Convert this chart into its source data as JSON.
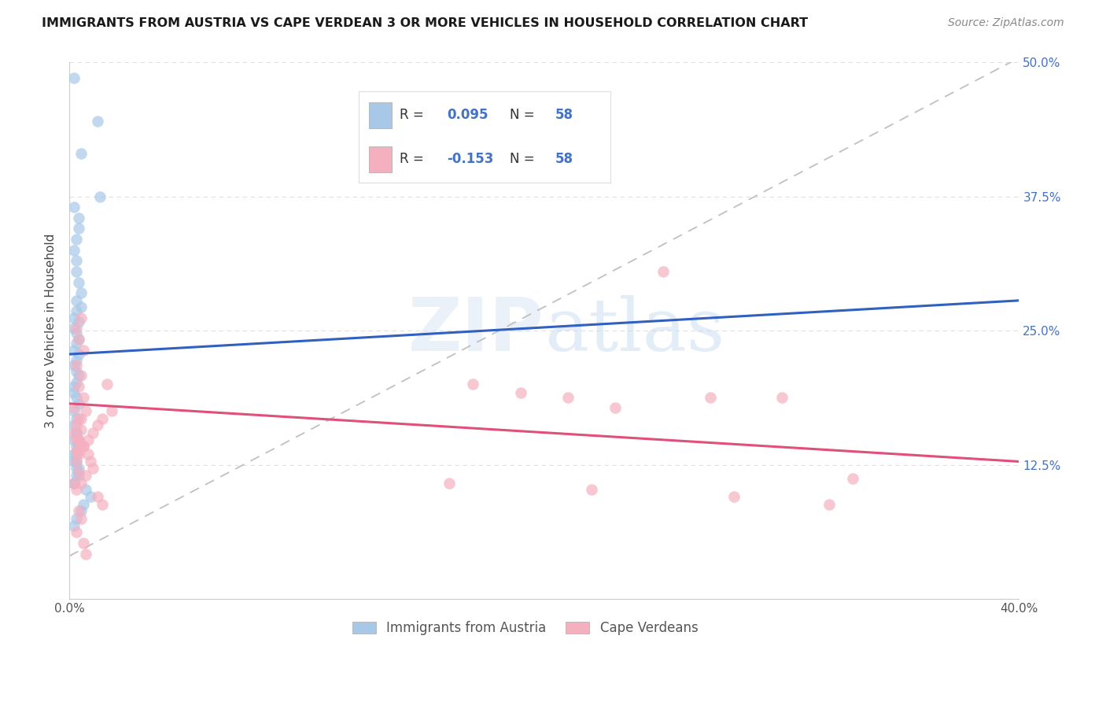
{
  "title": "IMMIGRANTS FROM AUSTRIA VS CAPE VERDEAN 3 OR MORE VEHICLES IN HOUSEHOLD CORRELATION CHART",
  "source": "Source: ZipAtlas.com",
  "ylabel": "3 or more Vehicles in Household",
  "x_min": 0.0,
  "x_max": 0.4,
  "y_min": 0.0,
  "y_max": 0.5,
  "color_blue_fill": "#a8c8e8",
  "color_blue_edge": "#a8c8e8",
  "color_pink_fill": "#f5b0c0",
  "color_pink_edge": "#f5b0c0",
  "color_blue_line": "#3060c0",
  "color_pink_line": "#e0507a",
  "color_gray_dash": "#c0c0c0",
  "color_right_axis": "#4472c4",
  "color_legend_text_dark": "#333333",
  "legend_label1": "Immigrants from Austria",
  "legend_label2": "Cape Verdeans",
  "blue_trend": [
    0.0,
    0.4,
    0.228,
    0.278
  ],
  "pink_trend": [
    0.0,
    0.4,
    0.182,
    0.128
  ],
  "gray_dash": [
    0.0,
    0.4,
    0.04,
    0.504
  ],
  "austria_x": [
    0.002,
    0.012,
    0.005,
    0.013,
    0.002,
    0.004,
    0.004,
    0.003,
    0.002,
    0.003,
    0.003,
    0.004,
    0.005,
    0.003,
    0.005,
    0.003,
    0.002,
    0.004,
    0.002,
    0.003,
    0.004,
    0.003,
    0.002,
    0.004,
    0.003,
    0.002,
    0.003,
    0.004,
    0.003,
    0.002,
    0.002,
    0.003,
    0.004,
    0.002,
    0.003,
    0.002,
    0.003,
    0.004,
    0.003,
    0.002,
    0.003,
    0.004,
    0.003,
    0.002,
    0.007,
    0.009,
    0.006,
    0.005,
    0.003,
    0.002,
    0.003,
    0.002,
    0.004,
    0.003,
    0.002,
    0.003,
    0.004,
    0.002
  ],
  "austria_y": [
    0.485,
    0.445,
    0.415,
    0.375,
    0.365,
    0.355,
    0.345,
    0.335,
    0.325,
    0.315,
    0.305,
    0.295,
    0.285,
    0.278,
    0.272,
    0.268,
    0.262,
    0.258,
    0.252,
    0.248,
    0.242,
    0.238,
    0.232,
    0.228,
    0.222,
    0.218,
    0.212,
    0.208,
    0.202,
    0.198,
    0.192,
    0.188,
    0.182,
    0.175,
    0.168,
    0.162,
    0.155,
    0.148,
    0.142,
    0.135,
    0.128,
    0.122,
    0.115,
    0.108,
    0.102,
    0.095,
    0.088,
    0.082,
    0.075,
    0.068,
    0.155,
    0.148,
    0.142,
    0.135,
    0.128,
    0.122,
    0.115,
    0.108
  ],
  "capeverde_x": [
    0.003,
    0.005,
    0.004,
    0.006,
    0.002,
    0.004,
    0.005,
    0.003,
    0.004,
    0.003,
    0.004,
    0.002,
    0.005,
    0.003,
    0.004,
    0.006,
    0.007,
    0.005,
    0.003,
    0.002,
    0.004,
    0.006,
    0.008,
    0.009,
    0.01,
    0.007,
    0.005,
    0.003,
    0.012,
    0.014,
    0.016,
    0.018,
    0.014,
    0.012,
    0.01,
    0.008,
    0.006,
    0.004,
    0.17,
    0.19,
    0.21,
    0.23,
    0.25,
    0.27,
    0.3,
    0.33,
    0.16,
    0.22,
    0.28,
    0.32,
    0.004,
    0.005,
    0.003,
    0.006,
    0.007,
    0.004,
    0.003,
    0.005
  ],
  "capeverde_y": [
    0.218,
    0.208,
    0.198,
    0.188,
    0.178,
    0.168,
    0.158,
    0.148,
    0.138,
    0.128,
    0.118,
    0.108,
    0.262,
    0.252,
    0.242,
    0.232,
    0.175,
    0.168,
    0.162,
    0.155,
    0.148,
    0.142,
    0.135,
    0.128,
    0.122,
    0.115,
    0.108,
    0.102,
    0.095,
    0.088,
    0.2,
    0.175,
    0.168,
    0.162,
    0.155,
    0.148,
    0.142,
    0.135,
    0.2,
    0.192,
    0.188,
    0.178,
    0.305,
    0.188,
    0.188,
    0.112,
    0.108,
    0.102,
    0.095,
    0.088,
    0.082,
    0.075,
    0.062,
    0.052,
    0.042,
    0.148,
    0.138,
    0.142
  ]
}
